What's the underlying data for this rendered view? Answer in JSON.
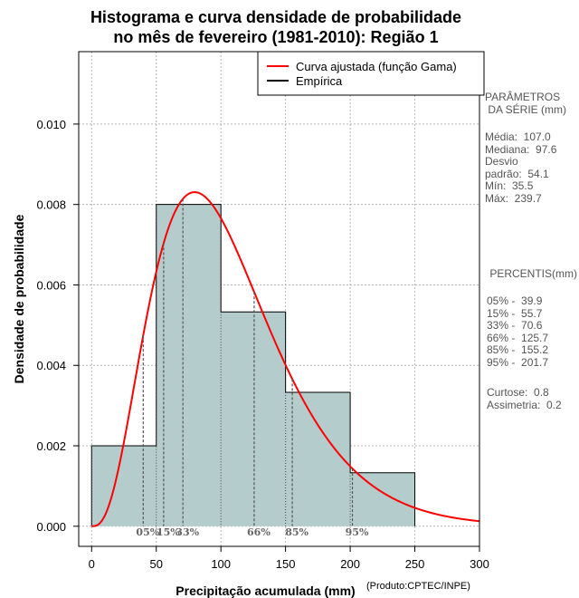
{
  "title_line1": "Histograma e curva densidade de probabilidade",
  "title_line2": "no mês de fevereiro (1981-2010): Região 1",
  "credit": "(Produto:CPTEC/INPE)",
  "parameters": {
    "heading1": "PARÂMETROS",
    "heading2": " DA SÉRIE (mm)",
    "lines": [
      "Média:  107.0",
      "Mediana:  97.6",
      "Desvio",
      "padrão:  54.1",
      "Mín:  35.5",
      "Máx:  239.7"
    ]
  },
  "percentiles": {
    "heading": " PERCENTIS(mm)",
    "lines": [
      "05% -  39.9",
      "15% -  55.7",
      "33% -  70.6",
      "66% -  125.7",
      "85% -  155.2",
      "95% -  201.7"
    ],
    "stats": [
      "Curtose:  0.8",
      "Assimetria:  0.2"
    ]
  },
  "colors": {
    "bar_fill": "#b5cccc",
    "curve": "#ff0000",
    "empirical": "#000000",
    "grid": "#b3b3b3"
  },
  "chart_data": {
    "type": "bar",
    "xlabel": "Precipitação acumulada (mm)",
    "ylabel": "Densidade de probabilidade",
    "xlim": [
      -10,
      300
    ],
    "ylim": [
      -0.0005,
      0.0118
    ],
    "xticks": [
      0,
      50,
      100,
      150,
      200,
      250,
      300
    ],
    "yticks": [
      0.0,
      0.002,
      0.004,
      0.006,
      0.008,
      0.01
    ],
    "ytick_labels": [
      "0.000",
      "0.002",
      "0.004",
      "0.006",
      "0.008",
      "0.010"
    ],
    "grid": true,
    "legend_position": "top-right",
    "histogram": [
      {
        "bin": [
          0,
          50
        ],
        "density": 0.002
      },
      {
        "bin": [
          50,
          100
        ],
        "density": 0.008
      },
      {
        "bin": [
          100,
          150
        ],
        "density": 0.00533
      },
      {
        "bin": [
          150,
          200
        ],
        "density": 0.00333
      },
      {
        "bin": [
          200,
          250
        ],
        "density": 0.00133
      }
    ],
    "series": [
      {
        "name": "Curva ajustada (função Gama)",
        "kind": "gamma",
        "mean": 107.0,
        "sd": 54.1
      },
      {
        "name": "Empírica",
        "kind": "step"
      }
    ],
    "percentile_markers": [
      {
        "label": "05%",
        "x": 39.9
      },
      {
        "label": "15%",
        "x": 55.7
      },
      {
        "label": "33%",
        "x": 70.6
      },
      {
        "label": "66%",
        "x": 125.7
      },
      {
        "label": "85%",
        "x": 155.2
      },
      {
        "label": "95%",
        "x": 201.7
      }
    ]
  }
}
